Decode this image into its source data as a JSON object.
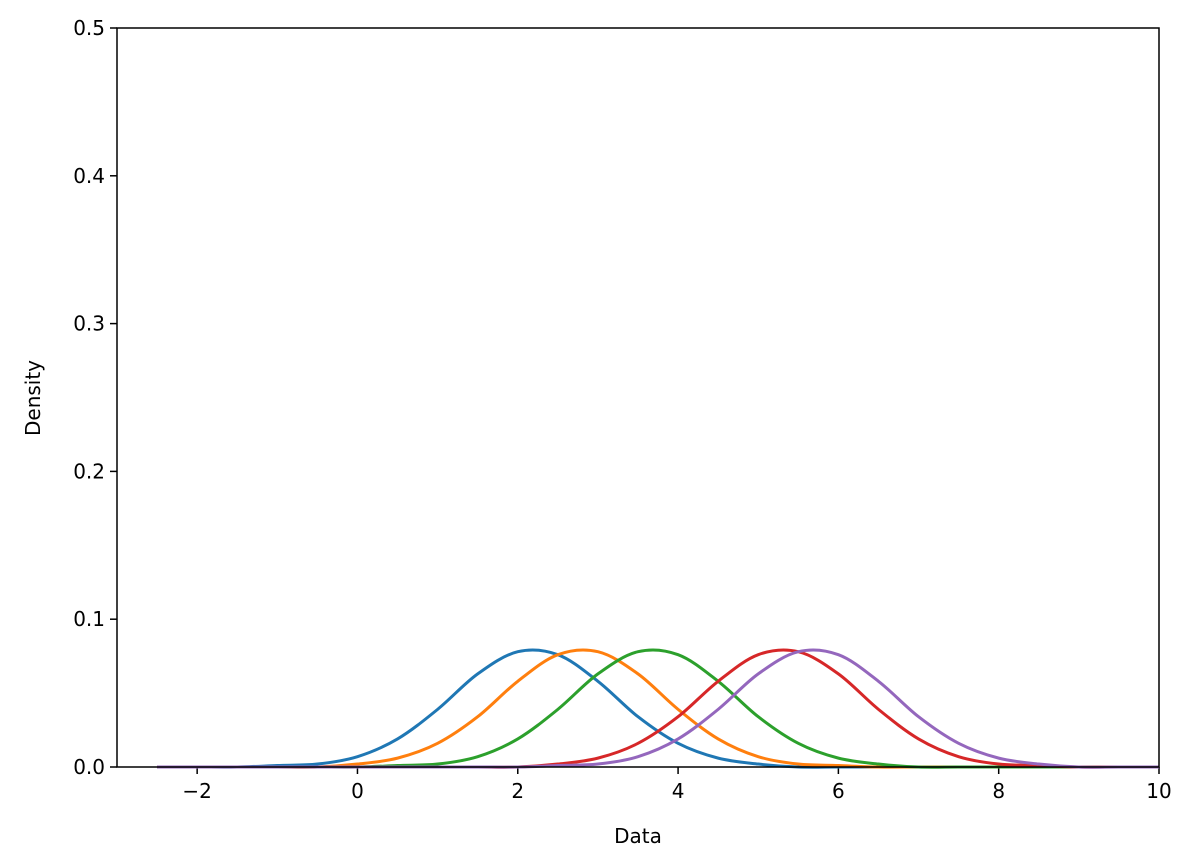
{
  "chart_data": {
    "type": "line",
    "x_label": "Data",
    "y_label": "Density",
    "x": [
      -2.5,
      -2,
      -1.5,
      -1,
      -0.5,
      0,
      0.5,
      1,
      1.5,
      2,
      2.5,
      3,
      3.5,
      4,
      4.5,
      5,
      5.5,
      6,
      6.5,
      7,
      7.5,
      8,
      8.5,
      9,
      9.5,
      10
    ],
    "series": [
      {
        "color": "#1f77b4",
        "values": [
          0,
          0,
          0,
          0.001,
          0.002,
          0.007,
          0.019,
          0.039,
          0.063,
          0.078,
          0.076,
          0.058,
          0.034,
          0.016,
          0.006,
          0.002,
          0,
          0,
          0,
          0,
          0,
          0,
          0,
          0,
          0,
          0
        ]
      },
      {
        "color": "#ff7f0e",
        "values": [
          0,
          0,
          0,
          0,
          0,
          0.002,
          0.006,
          0.016,
          0.034,
          0.058,
          0.076,
          0.078,
          0.063,
          0.039,
          0.019,
          0.007,
          0.002,
          0.001,
          0,
          0,
          0,
          0,
          0,
          0,
          0,
          0
        ]
      },
      {
        "color": "#2ca02c",
        "values": [
          0,
          0,
          0,
          0,
          0,
          0,
          0.001,
          0.002,
          0.007,
          0.019,
          0.039,
          0.063,
          0.078,
          0.076,
          0.058,
          0.034,
          0.016,
          0.006,
          0.002,
          0,
          0,
          0,
          0,
          0,
          0,
          0
        ]
      },
      {
        "color": "#d62728",
        "values": [
          0,
          0,
          0,
          0,
          0,
          0,
          0,
          0,
          0,
          0,
          0.002,
          0.006,
          0.016,
          0.034,
          0.058,
          0.076,
          0.078,
          0.063,
          0.039,
          0.019,
          0.007,
          0.002,
          0.001,
          0,
          0,
          0
        ]
      },
      {
        "color": "#9467bd",
        "values": [
          0,
          0,
          0,
          0,
          0,
          0,
          0,
          0,
          0,
          0,
          0.001,
          0.002,
          0.007,
          0.019,
          0.039,
          0.063,
          0.078,
          0.076,
          0.058,
          0.034,
          0.016,
          0.006,
          0.002,
          0,
          0,
          0
        ]
      }
    ],
    "xlim": [
      -3,
      10
    ],
    "xticks": [
      {
        "value": -2,
        "label": "−2"
      },
      0,
      2,
      4,
      6,
      8,
      10
    ],
    "ylim": [
      0,
      0.5
    ],
    "yticks": [
      {
        "value": 0,
        "label": "0.0"
      },
      0.1,
      0.2,
      0.3,
      0.4,
      0.5
    ],
    "grid": false
  }
}
